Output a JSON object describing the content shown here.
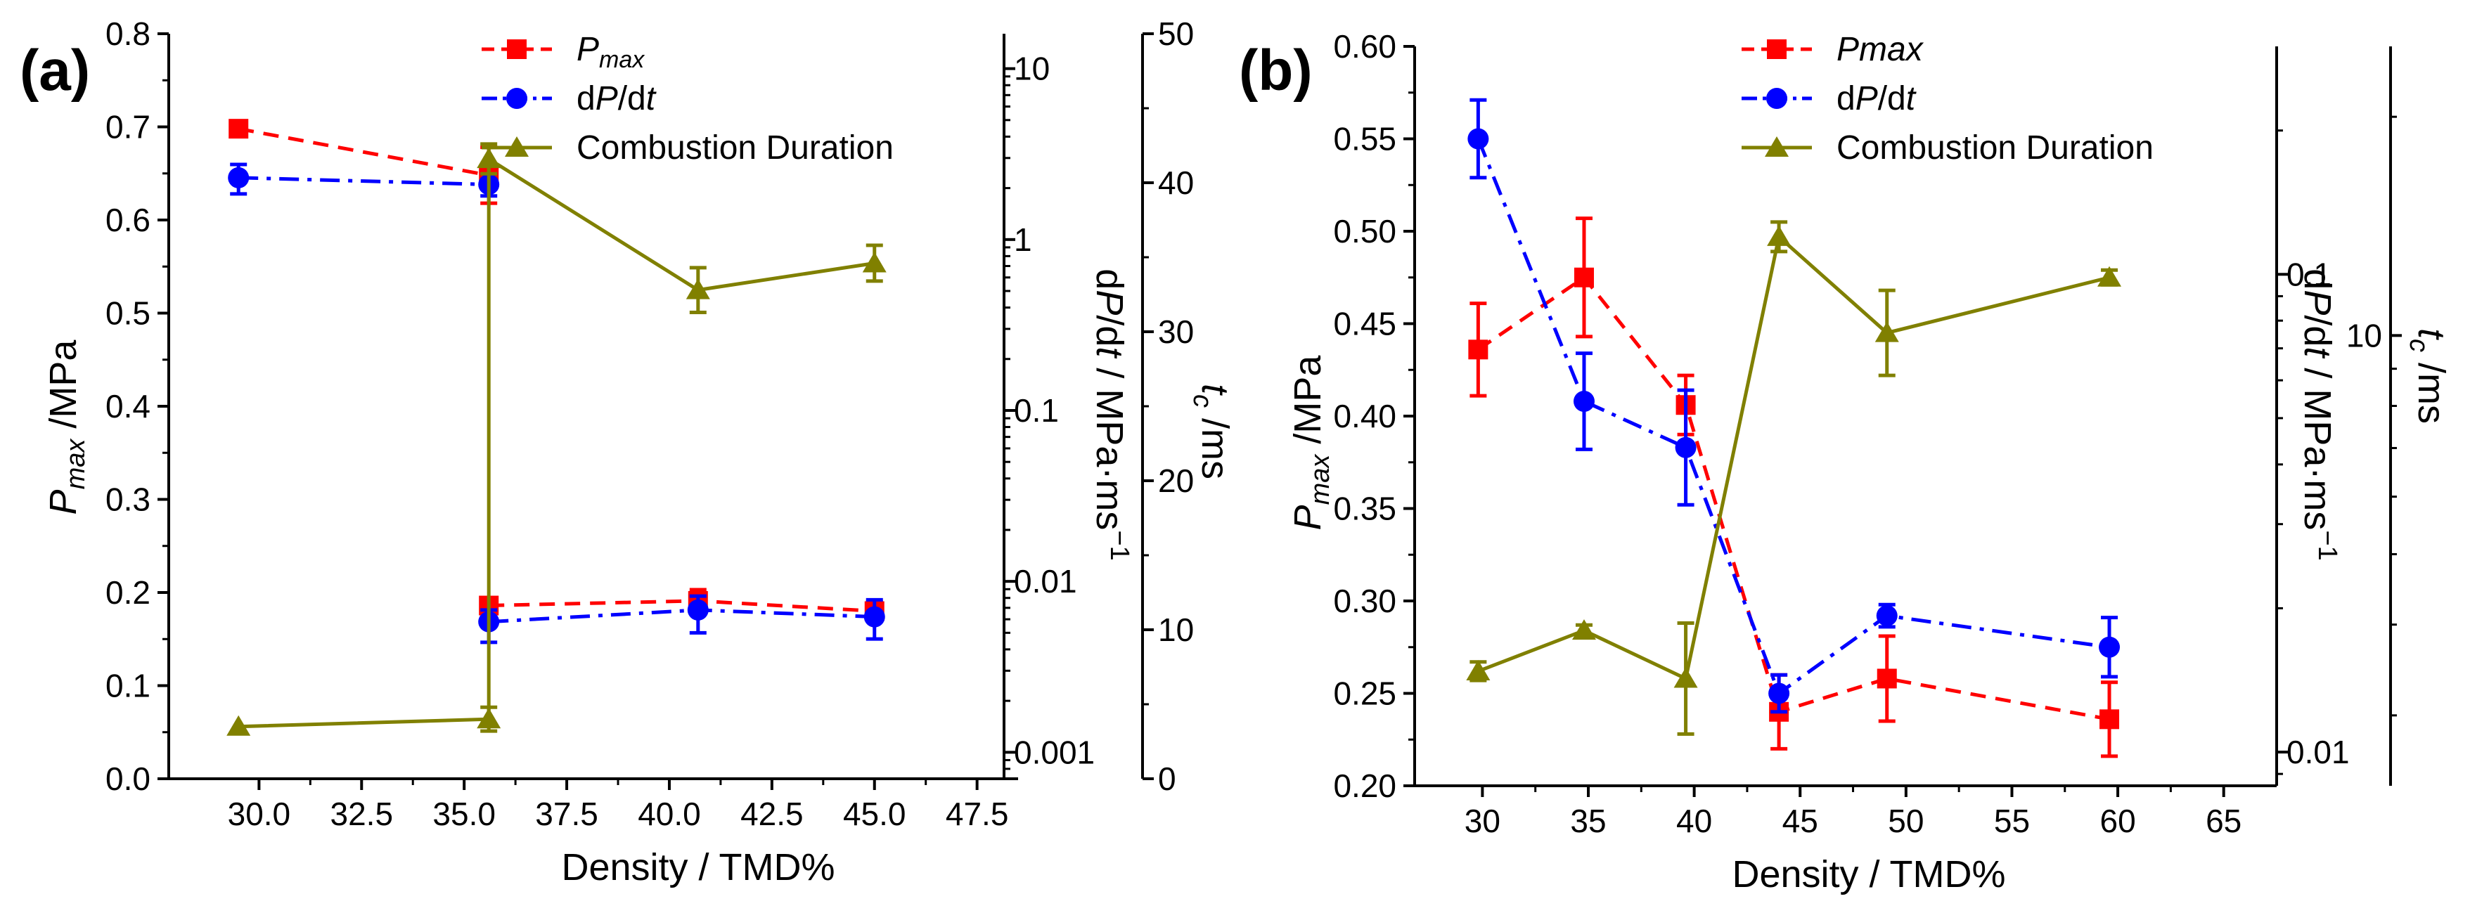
{
  "chart_data": [
    {
      "panel": "(a)",
      "type": "line",
      "xlabel": "Density / TMD%",
      "xlim": [
        27.8,
        48.5
      ],
      "xticks": [
        "30.0",
        "32.5",
        "35.0",
        "37.5",
        "40.0",
        "42.5",
        "45.0",
        "47.5"
      ],
      "xtick_values": [
        30,
        32.5,
        35,
        37.5,
        40,
        42.5,
        45,
        47.5
      ],
      "left_axis": {
        "label_main": "P",
        "label_sub": "max",
        "label_rest": " /MPa",
        "ylim": [
          0,
          0.8
        ],
        "ticks": [
          "0.0",
          "0.1",
          "0.2",
          "0.3",
          "0.4",
          "0.5",
          "0.6",
          "0.7",
          "0.8"
        ],
        "tick_values": [
          0,
          0.1,
          0.2,
          0.3,
          0.4,
          0.5,
          0.6,
          0.7,
          0.8
        ]
      },
      "mid_axis": {
        "label_d": "d",
        "label_p": "P",
        "label_slash_d": "/d",
        "label_t": "t",
        "label_rest": " / MPa·ms",
        "label_sup": "−1",
        "scale": "log",
        "ylim": [
          0.0007,
          16
        ],
        "ticks": [
          "0.001",
          "0.01",
          "0.1",
          "1",
          "10"
        ],
        "tick_values": [
          0.001,
          0.01,
          0.1,
          1,
          10
        ]
      },
      "right_axis": {
        "label_t": "t",
        "label_sub": "c",
        "label_rest": " /ms",
        "ylim": [
          0,
          50
        ],
        "ticks": [
          "0",
          "10",
          "20",
          "30",
          "40",
          "50"
        ],
        "tick_values": [
          0,
          10,
          20,
          30,
          40,
          50
        ]
      },
      "legend": [
        "P",
        "dP/dt",
        "Combustion Duration"
      ],
      "series": [
        {
          "name": "Pmax",
          "axis": "left",
          "color": "#ff0000",
          "marker": "square",
          "dash": "dash",
          "x": [
            29.5,
            35.6,
            null,
            35.6,
            40.7,
            45.0
          ],
          "y": [
            0.698,
            0.648,
            null,
            0.186,
            0.191,
            0.18
          ],
          "err": [
            0,
            0.03,
            null,
            0,
            0.012,
            0.01
          ]
        },
        {
          "name": "dP/dt",
          "axis": "mid",
          "color": "#0000ff",
          "marker": "circle",
          "dash": "dashdot",
          "x": [
            29.5,
            35.6,
            null,
            35.6,
            40.7,
            45.0
          ],
          "y": [
            2.3,
            2.1,
            null,
            0.0058,
            0.0068,
            0.0062
          ],
          "err_lo": [
            1.85,
            1.8,
            null,
            0.0044,
            0.005,
            0.0046
          ],
          "err_hi": [
            2.75,
            2.25,
            null,
            0.0068,
            0.0082,
            0.0078
          ]
        },
        {
          "name": "Combustion Duration",
          "axis": "right",
          "color": "#808000",
          "marker": "triangle",
          "dash": "solid",
          "x": [
            29.5,
            35.6,
            35.6,
            40.7,
            45.0
          ],
          "y": [
            3.5,
            4.0,
            41.6,
            32.8,
            34.6
          ],
          "err": [
            0,
            0.8,
            1.0,
            1.5,
            1.2
          ]
        }
      ]
    },
    {
      "panel": "(b)",
      "type": "line",
      "xlabel": "Density / TMD%",
      "xlim": [
        26.8,
        67.5
      ],
      "xticks": [
        "30",
        "35",
        "40",
        "45",
        "50",
        "55",
        "60",
        "65"
      ],
      "xtick_values": [
        30,
        35,
        40,
        45,
        50,
        55,
        60,
        65
      ],
      "left_axis": {
        "label_main": "P",
        "label_sub": "max",
        "label_rest": " /MPa",
        "ylim": [
          0.2,
          0.6
        ],
        "ticks": [
          "0.20",
          "0.25",
          "0.30",
          "0.35",
          "0.40",
          "0.45",
          "0.50",
          "0.55",
          "0.60"
        ],
        "tick_values": [
          0.2,
          0.25,
          0.3,
          0.35,
          0.4,
          0.45,
          0.5,
          0.55,
          0.6
        ]
      },
      "mid_axis": {
        "label_d": "d",
        "label_p": "P",
        "label_slash_d": "/d",
        "label_t": "t",
        "label_rest": " / MPa·ms",
        "label_sup": "−1",
        "scale": "log",
        "ylim": [
          0.0085,
          0.3
        ],
        "ticks": [
          "0.01",
          "0.1"
        ],
        "tick_values": [
          0.01,
          0.1
        ]
      },
      "right_axis": {
        "label_t": "t",
        "label_sub": "c",
        "label_rest": " /ms",
        "scale": "log",
        "ylim": [
          2.4,
          25
        ],
        "ticks": [
          "10"
        ],
        "tick_values": [
          10
        ]
      },
      "legend": [
        "Pmax",
        "dP/dt",
        "Combustion Duration"
      ],
      "series": [
        {
          "name": "Pmax",
          "axis": "left",
          "color": "#ff0000",
          "marker": "square",
          "dash": "dash",
          "x": [
            29.8,
            34.8,
            39.6,
            44.0,
            49.1,
            59.6
          ],
          "y": [
            0.436,
            0.475,
            0.406,
            0.24,
            0.258,
            0.236
          ],
          "err": [
            0.025,
            0.032,
            0.016,
            0.02,
            0.023,
            0.02
          ]
        },
        {
          "name": "dP/dt",
          "axis": "left",
          "color": "#0000ff",
          "marker": "circle",
          "dash": "dashdot",
          "x": [
            29.8,
            34.8,
            39.6,
            44.0,
            49.1,
            59.6
          ],
          "y": [
            0.55,
            0.408,
            0.383,
            0.25,
            0.292,
            0.275
          ],
          "err": [
            0.021,
            0.026,
            0.031,
            0.01,
            0.006,
            0.016
          ]
        },
        {
          "name": "Combustion Duration",
          "axis": "left",
          "color": "#808000",
          "marker": "triangle",
          "dash": "solid",
          "x": [
            29.8,
            34.8,
            39.6,
            44.0,
            49.1,
            59.6
          ],
          "y": [
            0.262,
            0.284,
            0.258,
            0.497,
            0.445,
            0.475
          ],
          "err": [
            0.005,
            0.003,
            0.03,
            0.008,
            0.023,
            0.004
          ]
        }
      ]
    }
  ],
  "panel_labels": [
    "(a)",
    "(b)"
  ]
}
